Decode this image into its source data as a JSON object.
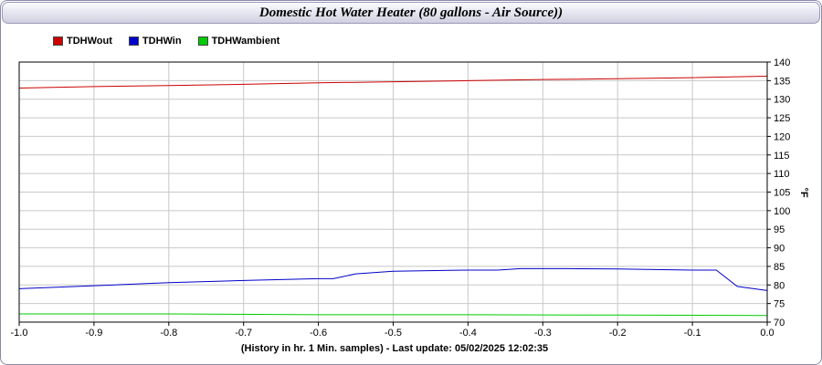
{
  "chart_data": {
    "type": "line",
    "title": "Domestic Hot Water Heater (80 gallons - Air Source))",
    "xlabel": "(History in hr. 1 Min. samples) - Last update: 05/02/2025 12:02:35",
    "ylabel": "°F",
    "xlim": [
      -1.0,
      0.0
    ],
    "ylim": [
      70,
      140
    ],
    "x_ticks": [
      "-1.0",
      "-0.9",
      "-0.8",
      "-0.7",
      "-0.6",
      "-0.5",
      "-0.4",
      "-0.3",
      "-0.2",
      "-0.1",
      "0.0"
    ],
    "y_ticks": [
      "140",
      "135",
      "130",
      "125",
      "120",
      "115",
      "110",
      "105",
      "100",
      "95",
      "90",
      "85",
      "80",
      "75",
      "70"
    ],
    "grid": true,
    "legend_position": "top-left",
    "series": [
      {
        "name": "TDHWout",
        "color": "#cc0000",
        "points": [
          [
            -1.0,
            133.0
          ],
          [
            -0.9,
            133.4
          ],
          [
            -0.8,
            133.7
          ],
          [
            -0.7,
            134.0
          ],
          [
            -0.6,
            134.4
          ],
          [
            -0.5,
            134.7
          ],
          [
            -0.4,
            135.0
          ],
          [
            -0.3,
            135.3
          ],
          [
            -0.2,
            135.5
          ],
          [
            -0.1,
            135.8
          ],
          [
            0.0,
            136.2
          ]
        ]
      },
      {
        "name": "TDHWin",
        "color": "#0000cc",
        "points": [
          [
            -1.0,
            79.0
          ],
          [
            -0.9,
            79.8
          ],
          [
            -0.8,
            80.6
          ],
          [
            -0.7,
            81.2
          ],
          [
            -0.6,
            81.7
          ],
          [
            -0.58,
            81.7
          ],
          [
            -0.55,
            83.0
          ],
          [
            -0.5,
            83.7
          ],
          [
            -0.4,
            84.0
          ],
          [
            -0.36,
            84.0
          ],
          [
            -0.33,
            84.4
          ],
          [
            -0.27,
            84.4
          ],
          [
            -0.2,
            84.3
          ],
          [
            -0.1,
            84.0
          ],
          [
            -0.068,
            84.0
          ],
          [
            -0.04,
            79.6
          ],
          [
            0.0,
            78.5
          ]
        ]
      },
      {
        "name": "TDHWambient",
        "color": "#00cc00",
        "points": [
          [
            -1.0,
            72.2
          ],
          [
            -0.8,
            72.2
          ],
          [
            -0.6,
            72.0
          ],
          [
            -0.4,
            72.0
          ],
          [
            -0.2,
            71.9
          ],
          [
            0.0,
            71.8
          ]
        ]
      }
    ]
  }
}
